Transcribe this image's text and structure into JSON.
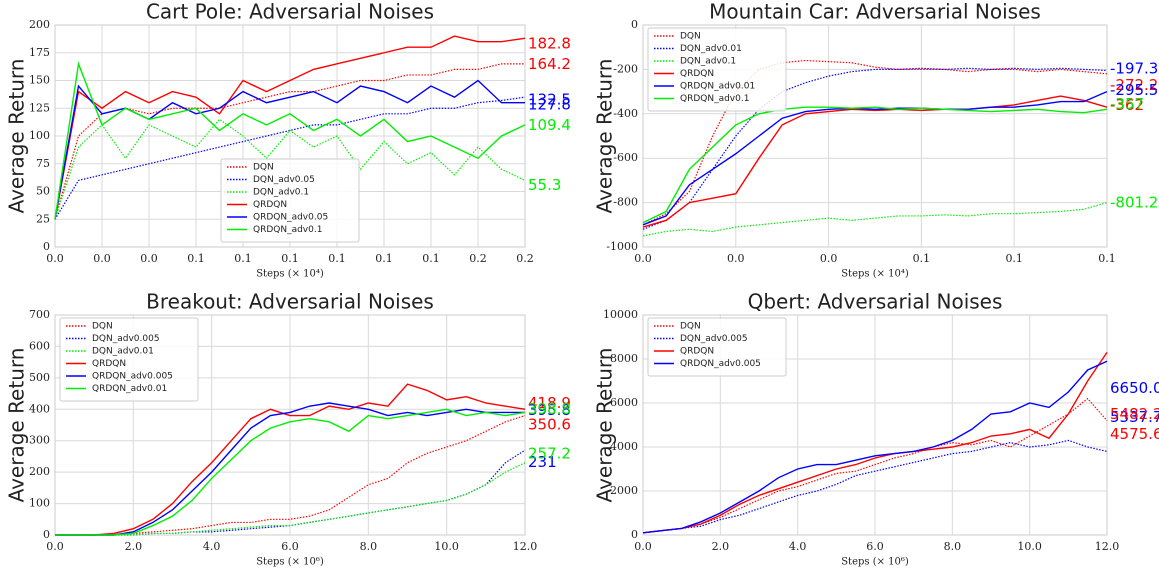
{
  "chart_data": [
    {
      "type": "line",
      "title": "Cart Pole: Adversarial Noises",
      "y_label": "Average Return",
      "x_label": "Steps (× 10⁴)",
      "grid": true,
      "legend": "lower center",
      "x": [
        0,
        0.01,
        0.02,
        0.03,
        0.04,
        0.05,
        0.06,
        0.07,
        0.08,
        0.09,
        0.1,
        0.11,
        0.12,
        0.13,
        0.14,
        0.15,
        0.16,
        0.17,
        0.18,
        0.19,
        0.2
      ],
      "xlim": [
        0,
        0.2
      ],
      "xticks": [
        {
          "value": 0,
          "label": "0.0"
        },
        {
          "value": 0.02,
          "label": "0.0"
        },
        {
          "value": 0.04,
          "label": "0.0"
        },
        {
          "value": 0.06,
          "label": "0.1"
        },
        {
          "value": 0.08,
          "label": "0.1"
        },
        {
          "value": 0.1,
          "label": "0.1"
        },
        {
          "value": 0.12,
          "label": "0.1"
        },
        {
          "value": 0.14,
          "label": "0.1"
        },
        {
          "value": 0.16,
          "label": "0.1"
        },
        {
          "value": 0.18,
          "label": "0.2"
        },
        {
          "value": 0.2,
          "label": "0.2"
        }
      ],
      "ylim": [
        0,
        200
      ],
      "yticks": [
        0,
        25,
        50,
        75,
        100,
        125,
        150,
        175,
        200
      ],
      "series": [
        {
          "name": "DQN",
          "color": "#ff0000",
          "linestyle": "dotted",
          "end_label": 164.2,
          "values": [
            25,
            100,
            120,
            125,
            120,
            125,
            125,
            125,
            130,
            135,
            140,
            140,
            145,
            150,
            150,
            155,
            155,
            160,
            160,
            165,
            165
          ]
        },
        {
          "name": "DQN_adv0.05",
          "color": "#0000ff",
          "linestyle": "dotted",
          "end_label": 127.8,
          "values": [
            25,
            60,
            65,
            70,
            75,
            80,
            85,
            90,
            95,
            100,
            105,
            110,
            110,
            115,
            120,
            120,
            125,
            125,
            130,
            132,
            135
          ]
        },
        {
          "name": "DQN_adv0.1",
          "color": "#00ee00",
          "linestyle": "dotted",
          "end_label": 55.3,
          "values": [
            25,
            90,
            110,
            80,
            110,
            100,
            90,
            115,
            100,
            80,
            105,
            90,
            100,
            70,
            95,
            75,
            85,
            65,
            90,
            70,
            60
          ]
        },
        {
          "name": "QRDQN",
          "color": "#ff0000",
          "linestyle": "solid",
          "end_label": 182.8,
          "values": [
            25,
            140,
            125,
            140,
            130,
            140,
            135,
            120,
            150,
            140,
            150,
            160,
            165,
            170,
            175,
            180,
            180,
            190,
            185,
            185,
            188
          ]
        },
        {
          "name": "QRDQN_adv0.05",
          "color": "#0000ff",
          "linestyle": "solid",
          "end_label": 132.5,
          "values": [
            25,
            145,
            120,
            125,
            115,
            130,
            120,
            125,
            140,
            130,
            135,
            140,
            130,
            145,
            140,
            130,
            145,
            135,
            150,
            130,
            130
          ]
        },
        {
          "name": "QRDQN_adv0.1",
          "color": "#00ee00",
          "linestyle": "solid",
          "end_label": 109.4,
          "values": [
            25,
            165,
            110,
            125,
            115,
            120,
            125,
            105,
            120,
            110,
            120,
            105,
            115,
            100,
            115,
            95,
            100,
            90,
            80,
            100,
            110
          ]
        }
      ]
    },
    {
      "type": "line",
      "title": "Mountain Car: Adversarial Noises",
      "y_label": "Average Return",
      "x_label": "Steps (× 10⁴)",
      "grid": true,
      "legend": "upper left",
      "x": [
        0,
        0.005,
        0.01,
        0.015,
        0.02,
        0.025,
        0.03,
        0.035,
        0.04,
        0.045,
        0.05,
        0.055,
        0.06,
        0.065,
        0.07,
        0.075,
        0.08,
        0.085,
        0.09,
        0.095,
        0.1
      ],
      "xlim": [
        0,
        0.1
      ],
      "xticks": [
        {
          "value": 0,
          "label": "0.0"
        },
        {
          "value": 0.02,
          "label": "0.0"
        },
        {
          "value": 0.04,
          "label": "0.0"
        },
        {
          "value": 0.06,
          "label": "0.1"
        },
        {
          "value": 0.08,
          "label": "0.1"
        },
        {
          "value": 0.1,
          "label": "0.1"
        }
      ],
      "ylim": [
        -1000,
        0
      ],
      "yticks": [
        -1000,
        -800,
        -600,
        -400,
        -200,
        0
      ],
      "series": [
        {
          "name": "DQN",
          "color": "#ff0000",
          "linestyle": "dotted",
          "end_label": -272.2,
          "values": [
            -900,
            -850,
            -750,
            -500,
            -300,
            -200,
            -170,
            -160,
            -165,
            -170,
            -190,
            -200,
            -200,
            -200,
            -210,
            -200,
            -200,
            -210,
            -200,
            -210,
            -220
          ]
        },
        {
          "name": "DQN_adv0.01",
          "color": "#0000ff",
          "linestyle": "dotted",
          "end_label": -197.3,
          "values": [
            -920,
            -880,
            -800,
            -650,
            -500,
            -380,
            -300,
            -260,
            -230,
            -210,
            -200,
            -200,
            -195,
            -200,
            -195,
            -200,
            -195,
            -200,
            -195,
            -200,
            -205
          ]
        },
        {
          "name": "DQN_adv0.1",
          "color": "#00ee00",
          "linestyle": "dotted",
          "end_label": -801.2,
          "values": [
            -950,
            -930,
            -920,
            -930,
            -910,
            -900,
            -890,
            -880,
            -870,
            -880,
            -870,
            -860,
            -860,
            -855,
            -860,
            -850,
            -850,
            -845,
            -840,
            -830,
            -800
          ]
        },
        {
          "name": "QRDQN",
          "color": "#ff0000",
          "linestyle": "solid",
          "end_label": -362.0,
          "values": [
            -910,
            -880,
            -800,
            -780,
            -760,
            -600,
            -450,
            -400,
            -390,
            -380,
            -385,
            -380,
            -385,
            -380,
            -380,
            -370,
            -360,
            -340,
            -320,
            -340,
            -370
          ]
        },
        {
          "name": "QRDQN_adv0.01",
          "color": "#0000ff",
          "linestyle": "solid",
          "end_label": -295.5,
          "values": [
            -900,
            -860,
            -720,
            -650,
            -580,
            -500,
            -420,
            -390,
            -380,
            -375,
            -380,
            -375,
            -375,
            -380,
            -380,
            -370,
            -370,
            -360,
            -345,
            -345,
            -300
          ]
        },
        {
          "name": "QRDQN_adv0.1",
          "color": "#00ee00",
          "linestyle": "solid",
          "end_label": -357.0,
          "values": [
            -890,
            -840,
            -650,
            -550,
            -450,
            -400,
            -380,
            -370,
            -370,
            -375,
            -370,
            -380,
            -375,
            -380,
            -385,
            -390,
            -385,
            -380,
            -390,
            -395,
            -380
          ]
        }
      ]
    },
    {
      "type": "line",
      "title": "Breakout: Adversarial Noises",
      "y_label": "Average Return",
      "x_label": "Steps (× 10⁶)",
      "grid": true,
      "legend": "upper left",
      "x": [
        0,
        0.5,
        1,
        1.5,
        2,
        2.5,
        3,
        3.5,
        4,
        4.5,
        5,
        5.5,
        6,
        6.5,
        7,
        7.5,
        8,
        8.5,
        9,
        9.5,
        10,
        10.5,
        11,
        11.5,
        12
      ],
      "xlim": [
        0,
        12
      ],
      "xticks": [
        {
          "value": 0,
          "label": "0.0"
        },
        {
          "value": 2,
          "label": "2.0"
        },
        {
          "value": 4,
          "label": "4.0"
        },
        {
          "value": 6,
          "label": "6.0"
        },
        {
          "value": 8,
          "label": "8.0"
        },
        {
          "value": 10,
          "label": "10.0"
        },
        {
          "value": 12,
          "label": "12.0"
        }
      ],
      "ylim": [
        0,
        700
      ],
      "yticks": [
        0,
        100,
        200,
        300,
        400,
        500,
        600,
        700
      ],
      "series": [
        {
          "name": "DQN",
          "color": "#ff0000",
          "linestyle": "dotted",
          "end_label": 350.6,
          "values": [
            0,
            0,
            0,
            0,
            5,
            10,
            15,
            20,
            30,
            40,
            40,
            50,
            50,
            60,
            80,
            120,
            160,
            180,
            230,
            260,
            280,
            300,
            330,
            360,
            380
          ]
        },
        {
          "name": "DQN_adv0.005",
          "color": "#0000ff",
          "linestyle": "dotted",
          "end_label": 231.0,
          "values": [
            0,
            0,
            0,
            0,
            0,
            5,
            5,
            10,
            10,
            15,
            20,
            25,
            30,
            40,
            50,
            60,
            70,
            80,
            90,
            100,
            110,
            130,
            160,
            230,
            270
          ]
        },
        {
          "name": "DQN_adv0.01",
          "color": "#00ee00",
          "linestyle": "dotted",
          "end_label": 257.2,
          "values": [
            0,
            0,
            0,
            0,
            0,
            5,
            5,
            10,
            15,
            20,
            25,
            30,
            30,
            40,
            50,
            60,
            70,
            80,
            90,
            100,
            110,
            130,
            160,
            200,
            230
          ]
        },
        {
          "name": "QRDQN",
          "color": "#ff0000",
          "linestyle": "solid",
          "end_label": 418.9,
          "values": [
            0,
            0,
            0,
            5,
            20,
            50,
            100,
            170,
            230,
            300,
            370,
            400,
            380,
            380,
            410,
            400,
            420,
            410,
            480,
            460,
            430,
            440,
            420,
            410,
            400
          ]
        },
        {
          "name": "QRDQN_adv0.005",
          "color": "#0000ff",
          "linestyle": "solid",
          "end_label": 395.8,
          "values": [
            0,
            0,
            0,
            0,
            10,
            40,
            80,
            140,
            200,
            270,
            340,
            380,
            390,
            410,
            420,
            410,
            400,
            380,
            390,
            380,
            390,
            400,
            390,
            390,
            390
          ]
        },
        {
          "name": "QRDQN_adv0.01",
          "color": "#00ee00",
          "linestyle": "solid",
          "end_label": 398.8,
          "values": [
            0,
            0,
            0,
            0,
            5,
            30,
            60,
            110,
            180,
            240,
            300,
            340,
            360,
            370,
            360,
            330,
            380,
            370,
            380,
            390,
            400,
            380,
            390,
            380,
            390
          ]
        }
      ]
    },
    {
      "type": "line",
      "title": "Qbert: Adversarial Noises",
      "y_label": "Average Return",
      "x_label": "Steps (× 10⁶)",
      "grid": true,
      "legend": "upper left",
      "x": [
        0,
        0.5,
        1,
        1.5,
        2,
        2.5,
        3,
        3.5,
        4,
        4.5,
        5,
        5.5,
        6,
        6.5,
        7,
        7.5,
        8,
        8.5,
        9,
        9.5,
        10,
        10.5,
        11,
        11.5,
        12
      ],
      "xlim": [
        0,
        12
      ],
      "xticks": [
        {
          "value": 0,
          "label": "0.0"
        },
        {
          "value": 2,
          "label": "2.0"
        },
        {
          "value": 4,
          "label": "4.0"
        },
        {
          "value": 6,
          "label": "6.0"
        },
        {
          "value": 8,
          "label": "8.0"
        },
        {
          "value": 10,
          "label": "10.0"
        },
        {
          "value": 12,
          "label": "12.0"
        }
      ],
      "ylim": [
        0,
        10000
      ],
      "yticks": [
        0,
        2000,
        4000,
        6000,
        8000,
        10000
      ],
      "series": [
        {
          "name": "DQN",
          "color": "#ff0000",
          "linestyle": "dotted",
          "end_label": 4575.6,
          "values": [
            100,
            200,
            300,
            500,
            800,
            1200,
            1600,
            2000,
            2200,
            2500,
            2800,
            2900,
            3200,
            3500,
            3700,
            4000,
            4200,
            4100,
            4300,
            4000,
            4500,
            5000,
            5500,
            6200,
            5200
          ]
        },
        {
          "name": "DQN_adv0.005",
          "color": "#0000ff",
          "linestyle": "dotted",
          "end_label": 5337.7,
          "values": [
            100,
            200,
            300,
            400,
            700,
            900,
            1200,
            1500,
            1800,
            2000,
            2300,
            2700,
            2900,
            3100,
            3300,
            3500,
            3700,
            3800,
            4000,
            4200,
            4000,
            4100,
            4300,
            4000,
            3800
          ]
        },
        {
          "name": "QRDQN",
          "color": "#ff0000",
          "linestyle": "solid",
          "end_label": 5482.2,
          "values": [
            100,
            200,
            300,
            500,
            900,
            1400,
            1800,
            2100,
            2400,
            2700,
            3000,
            3200,
            3500,
            3700,
            3800,
            3900,
            4000,
            4200,
            4500,
            4600,
            4800,
            4400,
            5500,
            7000,
            8300
          ]
        },
        {
          "name": "QRDQN_adv0.005",
          "color": "#0000ff",
          "linestyle": "solid",
          "end_label": {
            "value": 6650,
            "label": "6650.0"
          },
          "values": [
            100,
            200,
            300,
            600,
            1000,
            1500,
            2000,
            2600,
            3000,
            3200,
            3200,
            3400,
            3600,
            3700,
            3800,
            4000,
            4300,
            4800,
            5500,
            5600,
            6000,
            5800,
            6500,
            7500,
            7900
          ]
        }
      ]
    }
  ]
}
